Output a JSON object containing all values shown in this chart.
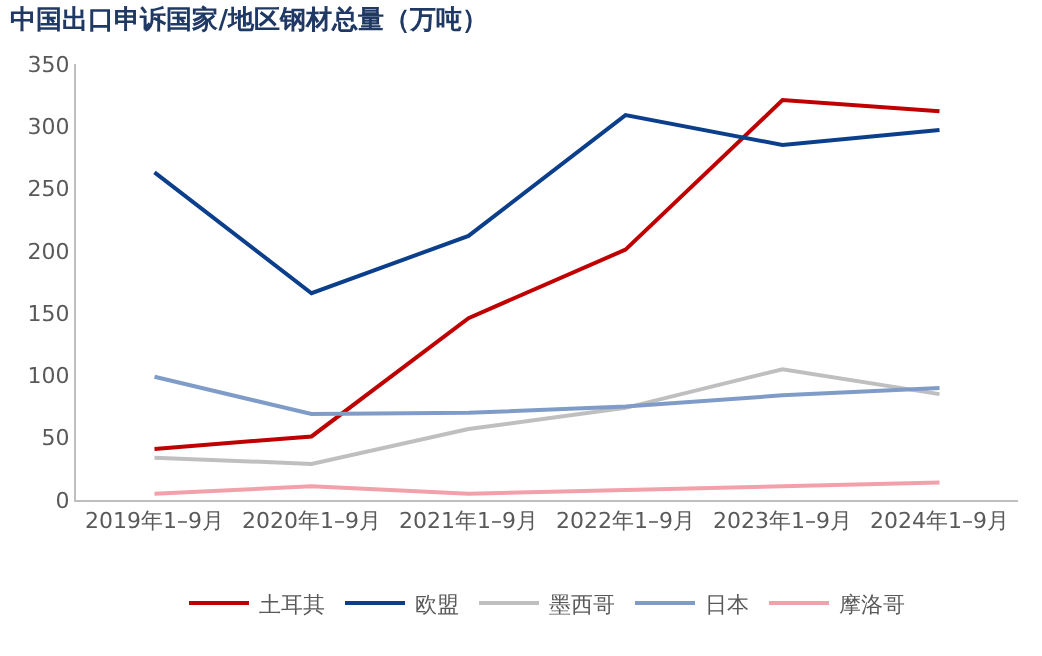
{
  "chart_data": {
    "type": "line",
    "title": "中国出口申诉国家/地区钢材总量（万吨）",
    "categories": [
      "2019年1–9月",
      "2020年1–9月",
      "2021年1–9月",
      "2022年1–9月",
      "2023年1–9月",
      "2024年1–9月"
    ],
    "series": [
      {
        "name": "土耳其",
        "color": "#c00000",
        "values": [
          41,
          51,
          146,
          201,
          321,
          312
        ]
      },
      {
        "name": "欧盟",
        "color": "#0b3f8c",
        "values": [
          263,
          166,
          212,
          309,
          285,
          297
        ]
      },
      {
        "name": "墨西哥",
        "color": "#bfbfbf",
        "values": [
          34,
          29,
          57,
          74,
          105,
          85
        ]
      },
      {
        "name": "日本",
        "color": "#7f9cc8",
        "values": [
          99,
          69,
          70,
          75,
          84,
          90
        ]
      },
      {
        "name": "摩洛哥",
        "color": "#f2a0aa",
        "values": [
          5,
          11,
          5,
          8,
          11,
          14
        ]
      }
    ],
    "ylim": [
      0,
      350
    ],
    "yticks": [
      0,
      50,
      100,
      150,
      200,
      250,
      300,
      350
    ],
    "grid": false,
    "legend": "bottom",
    "marker": "none",
    "line_style": "solid"
  }
}
